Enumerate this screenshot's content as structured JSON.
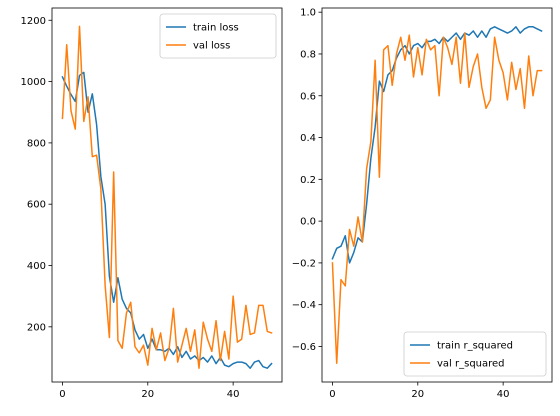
{
  "chart_data": [
    {
      "type": "line",
      "title": "",
      "xlabel": "",
      "ylabel": "",
      "xlim": [
        -2.45,
        51.45
      ],
      "ylim": [
        20,
        1240
      ],
      "xticks": [
        0,
        20,
        40
      ],
      "yticks": [
        200,
        400,
        600,
        800,
        1000,
        1200
      ],
      "ytick_format": "int",
      "grid": false,
      "legend": "top-right",
      "x": [
        0,
        1,
        2,
        3,
        4,
        5,
        6,
        7,
        8,
        9,
        10,
        11,
        12,
        13,
        14,
        15,
        16,
        17,
        18,
        19,
        20,
        21,
        22,
        23,
        24,
        25,
        26,
        27,
        28,
        29,
        30,
        31,
        32,
        33,
        34,
        35,
        36,
        37,
        38,
        39,
        40,
        41,
        42,
        43,
        44,
        45,
        46,
        47,
        48,
        49
      ],
      "series": [
        {
          "name": "train loss",
          "color": "#1f77b4",
          "values": [
            1015,
            985,
            958,
            935,
            1020,
            1030,
            900,
            960,
            860,
            690,
            600,
            365,
            280,
            360,
            290,
            260,
            245,
            190,
            160,
            175,
            130,
            160,
            125,
            125,
            120,
            130,
            110,
            135,
            100,
            120,
            95,
            105,
            90,
            100,
            85,
            105,
            80,
            100,
            75,
            70,
            80,
            85,
            85,
            80,
            65,
            85,
            90,
            70,
            65,
            80
          ]
        },
        {
          "name": "val loss",
          "color": "#ff7f0e",
          "values": [
            880,
            1120,
            905,
            845,
            1180,
            870,
            950,
            755,
            760,
            650,
            335,
            165,
            705,
            155,
            130,
            245,
            280,
            135,
            115,
            140,
            75,
            195,
            125,
            180,
            90,
            130,
            260,
            85,
            140,
            195,
            120,
            190,
            65,
            215,
            160,
            120,
            220,
            90,
            185,
            95,
            300,
            150,
            160,
            270,
            175,
            180,
            270,
            270,
            185,
            180
          ]
        }
      ]
    },
    {
      "type": "line",
      "title": "",
      "xlabel": "",
      "ylabel": "",
      "xlim": [
        -2.45,
        51.45
      ],
      "ylim": [
        -0.77,
        1.02
      ],
      "xticks": [
        0,
        20,
        40
      ],
      "yticks": [
        -0.6,
        -0.4,
        -0.2,
        0.0,
        0.2,
        0.4,
        0.6,
        0.8,
        1.0
      ],
      "ytick_format": "fixed1",
      "grid": false,
      "legend": "bottom-right",
      "x": [
        0,
        1,
        2,
        3,
        4,
        5,
        6,
        7,
        8,
        9,
        10,
        11,
        12,
        13,
        14,
        15,
        16,
        17,
        18,
        19,
        20,
        21,
        22,
        23,
        24,
        25,
        26,
        27,
        28,
        29,
        30,
        31,
        32,
        33,
        34,
        35,
        36,
        37,
        38,
        39,
        40,
        41,
        42,
        43,
        44,
        45,
        46,
        47,
        48,
        49
      ],
      "series": [
        {
          "name": "train r_squared",
          "color": "#1f77b4",
          "values": [
            -0.18,
            -0.13,
            -0.12,
            -0.07,
            -0.2,
            -0.15,
            -0.08,
            -0.1,
            0.08,
            0.3,
            0.45,
            0.67,
            0.62,
            0.7,
            0.72,
            0.78,
            0.82,
            0.84,
            0.8,
            0.84,
            0.85,
            0.83,
            0.86,
            0.86,
            0.87,
            0.85,
            0.88,
            0.86,
            0.88,
            0.9,
            0.87,
            0.9,
            0.89,
            0.91,
            0.88,
            0.91,
            0.88,
            0.92,
            0.93,
            0.92,
            0.91,
            0.9,
            0.91,
            0.93,
            0.9,
            0.92,
            0.93,
            0.93,
            0.92,
            0.91
          ]
        },
        {
          "name": "val r_squared",
          "color": "#ff7f0e",
          "values": [
            -0.2,
            -0.68,
            -0.28,
            -0.31,
            -0.04,
            -0.12,
            0.02,
            -0.1,
            0.25,
            0.38,
            0.77,
            0.21,
            0.82,
            0.84,
            0.65,
            0.8,
            0.88,
            0.77,
            0.89,
            0.69,
            0.83,
            0.7,
            0.87,
            0.82,
            0.84,
            0.6,
            0.88,
            0.83,
            0.75,
            0.88,
            0.66,
            0.9,
            0.64,
            0.74,
            0.8,
            0.64,
            0.54,
            0.58,
            0.88,
            0.77,
            0.71,
            0.58,
            0.76,
            0.63,
            0.73,
            0.54,
            0.79,
            0.6,
            0.72,
            0.72
          ]
        }
      ]
    }
  ]
}
